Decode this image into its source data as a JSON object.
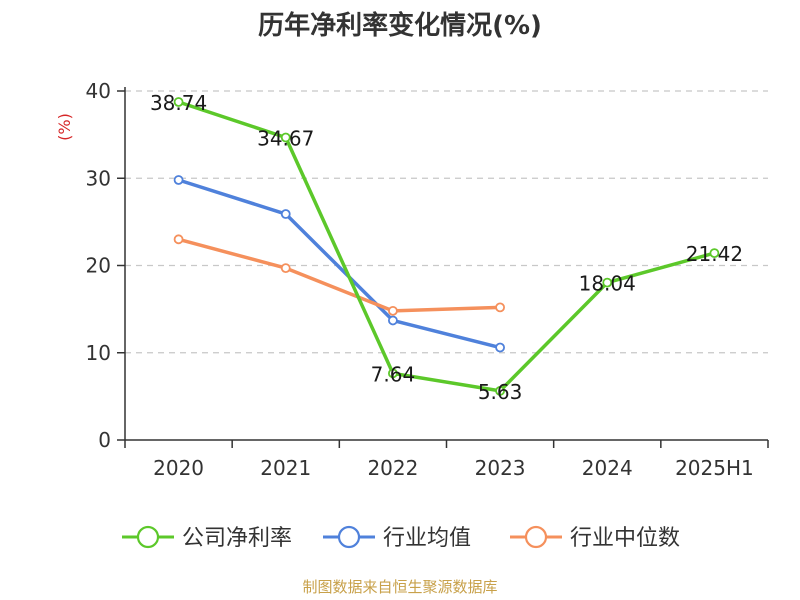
{
  "title": "历年净利率变化情况(%)",
  "source": "制图数据来自恒生聚源数据库",
  "colors": {
    "source": "#c8a14a",
    "ylabel": "#d62728",
    "grid": "#c8c8c8",
    "axis": "#333333"
  },
  "chart_data": {
    "type": "line",
    "title": "历年净利率变化情况(%)",
    "ylabel": "(%)",
    "xlabel": "",
    "categories": [
      "2020",
      "2021",
      "2022",
      "2023",
      "2024",
      "2025H1"
    ],
    "ylim": [
      0,
      40
    ],
    "yticks": [
      0,
      10,
      20,
      30,
      40
    ],
    "grid": "horizontal dashed",
    "legend": "bottom",
    "series": [
      {
        "name": "公司净利率",
        "color": "#5cc82a",
        "labels": true,
        "values": [
          38.74,
          34.67,
          7.64,
          5.63,
          18.04,
          21.42
        ],
        "value_labels": [
          "38.74",
          "34.67",
          "7.64",
          "5.63",
          "18.04",
          "21.42"
        ]
      },
      {
        "name": "行业均值",
        "color": "#4f81db",
        "labels": false,
        "values": [
          29.8,
          25.9,
          13.7,
          10.6,
          null,
          null
        ]
      },
      {
        "name": "行业中位数",
        "color": "#f5905c",
        "labels": false,
        "values": [
          23.0,
          19.7,
          14.8,
          15.2,
          null,
          null
        ]
      }
    ]
  }
}
